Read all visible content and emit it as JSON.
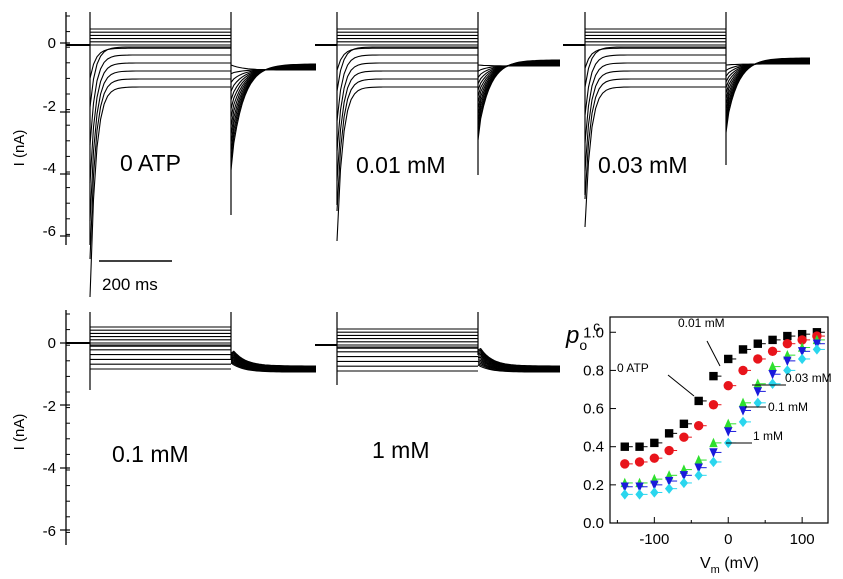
{
  "ylabel_left": "I (nA)",
  "scale_bar_label": "200 ms",
  "current_yticks": [
    "0",
    "-2",
    "-4",
    "-6"
  ],
  "trace_panels": [
    {
      "label": "0 ATP"
    },
    {
      "label": "0.01 mM"
    },
    {
      "label": "0.03 mM"
    },
    {
      "label": "0.1 mM"
    },
    {
      "label": "1 mM"
    }
  ],
  "chart_data": {
    "type": "scatter",
    "ylabel": "p",
    "ylabel_sub": "o",
    "ylabel_sup": "c",
    "xlabel": "V",
    "xlabel_sub": "m",
    "xlabel_unit": " (mV)",
    "xlim": [
      -160,
      135
    ],
    "ylim": [
      0.0,
      1.08
    ],
    "xticks": [
      -100,
      0,
      100
    ],
    "yticks": [
      0.0,
      0.2,
      0.4,
      0.6,
      0.8,
      1.0
    ],
    "x": [
      -140,
      -120,
      -100,
      -80,
      -60,
      -40,
      -20,
      0,
      20,
      40,
      60,
      80,
      100,
      120
    ],
    "series": [
      {
        "name": "0 ATP",
        "color": "#000000",
        "marker": "square",
        "values": [
          0.4,
          0.4,
          0.42,
          0.47,
          0.52,
          0.64,
          0.77,
          0.86,
          0.91,
          0.94,
          0.96,
          0.98,
          0.99,
          1.0
        ]
      },
      {
        "name": "0.01 mM",
        "color": "#e8141b",
        "marker": "circle",
        "values": [
          0.31,
          0.32,
          0.34,
          0.38,
          0.45,
          0.51,
          0.62,
          0.72,
          0.8,
          0.86,
          0.9,
          0.94,
          0.96,
          0.98
        ]
      },
      {
        "name": "0.03 mM",
        "color": "#2ee02e",
        "marker": "triangle-up",
        "values": [
          0.21,
          0.21,
          0.23,
          0.25,
          0.28,
          0.33,
          0.42,
          0.52,
          0.63,
          0.73,
          0.82,
          0.88,
          0.92,
          0.96
        ]
      },
      {
        "name": "0.1 mM",
        "color": "#1a1adc",
        "marker": "triangle-down",
        "values": [
          0.19,
          0.19,
          0.2,
          0.22,
          0.25,
          0.29,
          0.37,
          0.48,
          0.59,
          0.69,
          0.78,
          0.85,
          0.9,
          0.94
        ]
      },
      {
        "name": "1 mM",
        "color": "#2ad6ee",
        "marker": "diamond",
        "values": [
          0.15,
          0.15,
          0.16,
          0.18,
          0.21,
          0.25,
          0.32,
          0.42,
          0.53,
          0.63,
          0.73,
          0.8,
          0.86,
          0.91
        ]
      }
    ]
  }
}
